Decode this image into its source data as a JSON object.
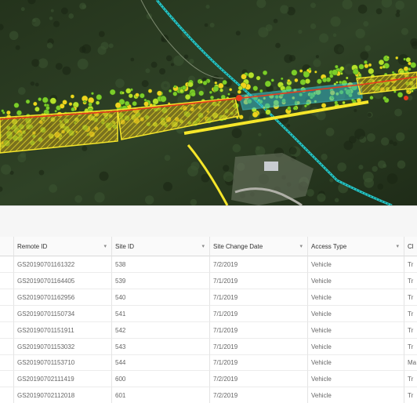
{
  "table": {
    "columns": [
      "",
      "Remote ID",
      "Site ID",
      "Site Change Date",
      "Access Type",
      "Cl"
    ],
    "rows": [
      [
        "...",
        "GS20190701161322",
        "538",
        "7/2/2019",
        "Vehicle",
        "Tr"
      ],
      [
        "...",
        "GS20190701164405",
        "539",
        "7/1/2019",
        "Vehicle",
        "Tr"
      ],
      [
        "...",
        "GS20190701162956",
        "540",
        "7/1/2019",
        "Vehicle",
        "Tr"
      ],
      [
        "...",
        "GS20190701150734",
        "541",
        "7/1/2019",
        "Vehicle",
        "Tr"
      ],
      [
        "...",
        "GS20190701151911",
        "542",
        "7/1/2019",
        "Vehicle",
        "Tr"
      ],
      [
        "...",
        "GS20190701153032",
        "543",
        "7/1/2019",
        "Vehicle",
        "Tr"
      ],
      [
        "...",
        "GS20190701153710",
        "544",
        "7/1/2019",
        "Vehicle",
        "Ma"
      ],
      [
        "...",
        "GS20190702111419",
        "600",
        "7/2/2019",
        "Vehicle",
        "Tr"
      ],
      [
        "...",
        "GS20190702112018",
        "601",
        "7/2/2019",
        "Vehicle",
        "Tr"
      ]
    ]
  }
}
